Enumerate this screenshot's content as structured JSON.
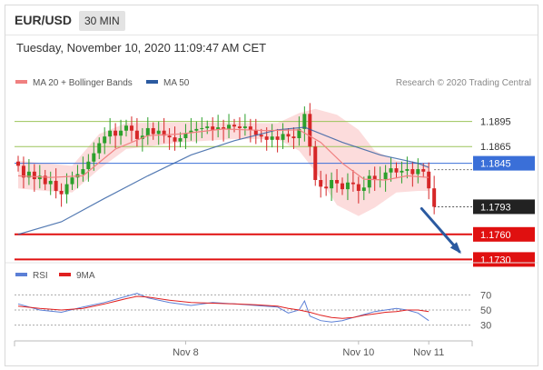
{
  "header": {
    "pair": "EUR/USD",
    "timeframe": "30 MIN"
  },
  "datetime": "Tuesday, November 10, 2020 11:09:47 AM CET",
  "legend": [
    {
      "label": "MA 20 + Bollinger Bands",
      "color": "#f08080"
    },
    {
      "label": "MA 50",
      "color": "#2b5aa0"
    }
  ],
  "source": "Research © 2020 Trading Central",
  "rsi_legend": [
    {
      "label": "RSI",
      "color": "#5b7fd6"
    },
    {
      "label": "9MA",
      "color": "#e02020"
    }
  ],
  "colors": {
    "up": "#2ca02c",
    "down": "#d62728",
    "resistance": "#9bc45a",
    "pivot": "#3a6fd8",
    "support": "#e01010",
    "last": "#222222",
    "arrow": "#2b5aa0",
    "band_fill": "#fbd6d6"
  },
  "chart_data": {
    "type": "candlestick",
    "price_levels": [
      {
        "value": 1.1895,
        "label": "1.1895",
        "kind": "resistance"
      },
      {
        "value": 1.1865,
        "label": "1.1865",
        "kind": "resistance"
      },
      {
        "value": 1.1845,
        "label": "1.1845",
        "kind": "pivot"
      },
      {
        "value": 1.1793,
        "label": "1.1793",
        "kind": "last"
      },
      {
        "value": 1.176,
        "label": "1.1760",
        "kind": "support"
      },
      {
        "value": 1.173,
        "label": "1.1730",
        "kind": "support"
      }
    ],
    "ylim": [
      1.1725,
      1.1925
    ],
    "x_ticks": [
      {
        "index": 31,
        "label": "Nov 8"
      },
      {
        "index": 63,
        "label": "Nov 10"
      },
      {
        "index": 76,
        "label": "Nov 11"
      }
    ],
    "closes": [
      1.1842,
      1.1828,
      1.1835,
      1.1826,
      1.183,
      1.182,
      1.1824,
      1.1812,
      1.1808,
      1.182,
      1.1828,
      1.1832,
      1.1838,
      1.1847,
      1.1857,
      1.1869,
      1.1877,
      1.1884,
      1.1878,
      1.1884,
      1.189,
      1.1884,
      1.1874,
      1.1878,
      1.1887,
      1.188,
      1.1884,
      1.1878,
      1.1876,
      1.1871,
      1.1875,
      1.1881,
      1.1884,
      1.1886,
      1.1887,
      1.1889,
      1.1885,
      1.1888,
      1.1886,
      1.1891,
      1.1889,
      1.1887,
      1.1889,
      1.1885,
      1.1879,
      1.1877,
      1.1873,
      1.1877,
      1.1873,
      1.188,
      1.1877,
      1.1875,
      1.1886,
      1.1904,
      1.1865,
      1.1825,
      1.1817,
      1.1815,
      1.1825,
      1.1821,
      1.1814,
      1.1822,
      1.182,
      1.1812,
      1.1816,
      1.183,
      1.1825,
      1.1826,
      1.1834,
      1.1839,
      1.1834,
      1.1836,
      1.1838,
      1.1832,
      1.1838,
      1.1835,
      1.1815,
      1.1793
    ],
    "ma50_points": [
      [
        0,
        1.176
      ],
      [
        8,
        1.1775
      ],
      [
        16,
        1.1803
      ],
      [
        24,
        1.183
      ],
      [
        32,
        1.1855
      ],
      [
        40,
        1.1872
      ],
      [
        48,
        1.1885
      ],
      [
        53,
        1.1888
      ],
      [
        60,
        1.187
      ],
      [
        67,
        1.1855
      ],
      [
        74,
        1.1845
      ],
      [
        76,
        1.184
      ]
    ],
    "ma20_points": [
      [
        0,
        1.183
      ],
      [
        6,
        1.1828
      ],
      [
        12,
        1.183
      ],
      [
        18,
        1.1862
      ],
      [
        24,
        1.1878
      ],
      [
        30,
        1.188
      ],
      [
        38,
        1.1886
      ],
      [
        46,
        1.1884
      ],
      [
        52,
        1.1885
      ],
      [
        56,
        1.187
      ],
      [
        60,
        1.1845
      ],
      [
        64,
        1.1826
      ],
      [
        68,
        1.1825
      ],
      [
        72,
        1.183
      ],
      [
        76,
        1.1828
      ]
    ],
    "bb_upper": [
      [
        0,
        1.1848
      ],
      [
        5,
        1.1845
      ],
      [
        10,
        1.1842
      ],
      [
        15,
        1.188
      ],
      [
        20,
        1.1893
      ],
      [
        30,
        1.1894
      ],
      [
        40,
        1.1893
      ],
      [
        48,
        1.1893
      ],
      [
        52,
        1.1905
      ],
      [
        55,
        1.191
      ],
      [
        59,
        1.1903
      ],
      [
        63,
        1.1885
      ],
      [
        66,
        1.186
      ],
      [
        70,
        1.1848
      ],
      [
        74,
        1.1845
      ],
      [
        76,
        1.1843
      ]
    ],
    "bb_lower": [
      [
        0,
        1.1815
      ],
      [
        5,
        1.1812
      ],
      [
        10,
        1.181
      ],
      [
        15,
        1.1838
      ],
      [
        20,
        1.1862
      ],
      [
        30,
        1.187
      ],
      [
        40,
        1.1874
      ],
      [
        48,
        1.1874
      ],
      [
        52,
        1.186
      ],
      [
        55,
        1.1835
      ],
      [
        59,
        1.1795
      ],
      [
        63,
        1.1782
      ],
      [
        66,
        1.1792
      ],
      [
        70,
        1.181
      ],
      [
        74,
        1.1812
      ],
      [
        76,
        1.1812
      ]
    ],
    "forecast_arrow": {
      "from": [
        74,
        1.1793
      ],
      "to": [
        82,
        1.1735
      ]
    },
    "rsi": {
      "levels": [
        70,
        50,
        30
      ],
      "ylim": [
        20,
        80
      ],
      "rsi_points": [
        [
          0,
          58
        ],
        [
          4,
          50
        ],
        [
          8,
          47
        ],
        [
          12,
          54
        ],
        [
          16,
          60
        ],
        [
          20,
          68
        ],
        [
          22,
          72
        ],
        [
          24,
          66
        ],
        [
          28,
          60
        ],
        [
          32,
          56
        ],
        [
          36,
          60
        ],
        [
          40,
          58
        ],
        [
          44,
          56
        ],
        [
          48,
          54
        ],
        [
          50,
          46
        ],
        [
          52,
          50
        ],
        [
          53,
          62
        ],
        [
          54,
          42
        ],
        [
          56,
          36
        ],
        [
          58,
          34
        ],
        [
          60,
          36
        ],
        [
          62,
          40
        ],
        [
          64,
          44
        ],
        [
          66,
          48
        ],
        [
          68,
          50
        ],
        [
          70,
          52
        ],
        [
          72,
          50
        ],
        [
          74,
          46
        ],
        [
          76,
          36
        ]
      ],
      "ma_points": [
        [
          0,
          55
        ],
        [
          4,
          52
        ],
        [
          8,
          50
        ],
        [
          12,
          52
        ],
        [
          16,
          58
        ],
        [
          20,
          65
        ],
        [
          22,
          68
        ],
        [
          24,
          67
        ],
        [
          28,
          63
        ],
        [
          32,
          60
        ],
        [
          36,
          59
        ],
        [
          40,
          58
        ],
        [
          44,
          57
        ],
        [
          48,
          55
        ],
        [
          50,
          52
        ],
        [
          52,
          50
        ],
        [
          54,
          47
        ],
        [
          56,
          43
        ],
        [
          58,
          40
        ],
        [
          60,
          39
        ],
        [
          62,
          40
        ],
        [
          64,
          43
        ],
        [
          66,
          45
        ],
        [
          68,
          47
        ],
        [
          70,
          48
        ],
        [
          72,
          50
        ],
        [
          74,
          50
        ],
        [
          76,
          48
        ]
      ]
    }
  }
}
